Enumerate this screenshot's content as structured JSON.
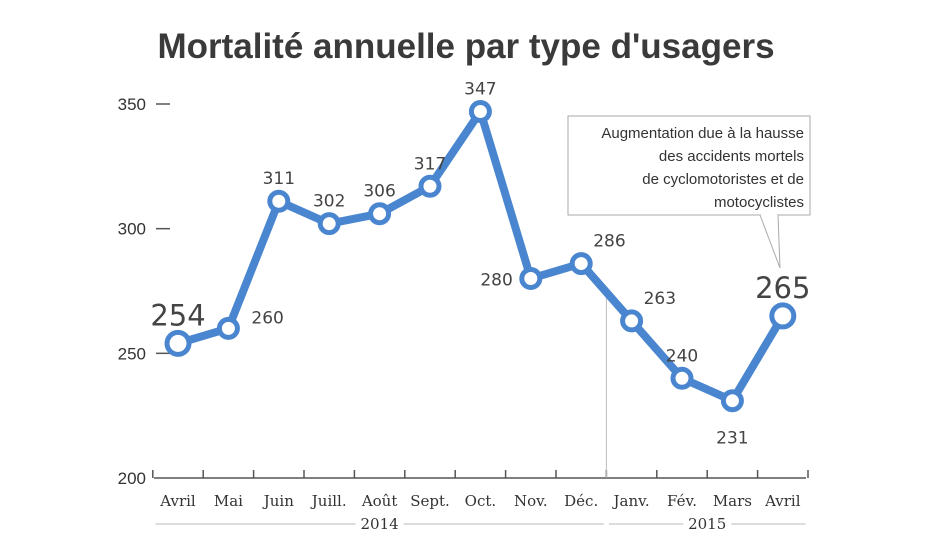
{
  "chart_data": {
    "type": "line",
    "title": "Mortalité annuelle par type d'usagers",
    "categories": [
      "Avril",
      "Mai",
      "Juin",
      "Juill.",
      "Août",
      "Sept.",
      "Oct.",
      "Nov.",
      "Déc.",
      "Janv.",
      "Fév.",
      "Mars",
      "Avril"
    ],
    "values": [
      254,
      260,
      311,
      302,
      306,
      317,
      347,
      280,
      286,
      263,
      240,
      231,
      265
    ],
    "data_labels": [
      "254",
      "260",
      "311",
      "302",
      "306",
      "317",
      "347",
      "280",
      "286",
      "263",
      "240",
      "231",
      "265"
    ],
    "yticks": [
      200,
      250,
      300,
      350
    ],
    "ytick_labels": [
      "200",
      "250",
      "300",
      "350"
    ],
    "ylim": [
      200,
      350
    ],
    "grid": false,
    "legend": "none",
    "year_groups": [
      {
        "label": "2014",
        "start_index": 0,
        "end_index": 8
      },
      {
        "label": "2015",
        "start_index": 9,
        "end_index": 12
      }
    ],
    "annotation": {
      "lines": [
        "Augmentation due à la hausse",
        "des accidents mortels",
        "de cyclomotoristes et de",
        "motocyclistes"
      ]
    },
    "colors": {
      "line": "#4a86d0",
      "marker_fill": "#ffffff",
      "axis": "#555555",
      "divider": "#bbbbbb"
    }
  }
}
